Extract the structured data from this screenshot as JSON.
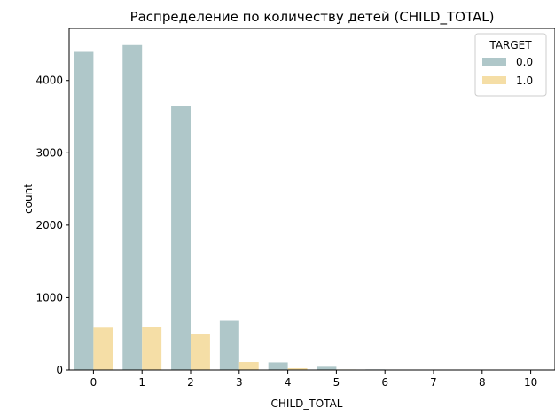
{
  "chart_data": {
    "type": "bar",
    "title": "Распределение по количеству детей (CHILD_TOTAL)",
    "xlabel": "CHILD_TOTAL",
    "ylabel": "count",
    "categories": [
      "0",
      "1",
      "2",
      "3",
      "4",
      "5",
      "6",
      "7",
      "8",
      "10"
    ],
    "ylim": [
      0,
      4720
    ],
    "yticks": [
      0,
      1000,
      2000,
      3000,
      4000
    ],
    "grid": false,
    "legend": {
      "title": "TARGET",
      "position": "top-right"
    },
    "series": [
      {
        "name": "0.0",
        "color": "#afc7c9",
        "values": [
          4395,
          4490,
          3650,
          680,
          105,
          45,
          8,
          5,
          2,
          1
        ]
      },
      {
        "name": "1.0",
        "color": "#f5dea6",
        "values": [
          585,
          600,
          490,
          110,
          25,
          7,
          2,
          0,
          0,
          0
        ]
      }
    ]
  }
}
